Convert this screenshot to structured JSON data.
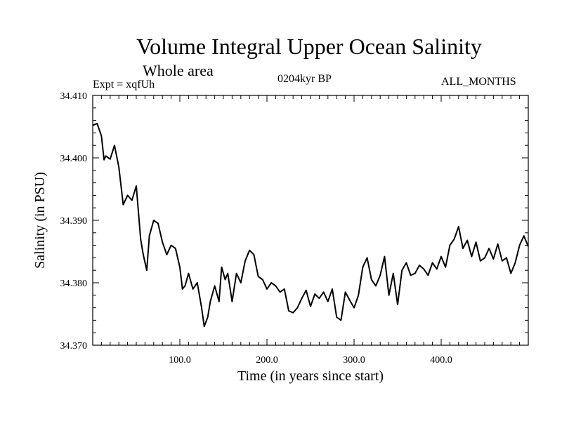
{
  "header": {
    "title": "Volume Integral Upper Ocean Salinity",
    "subtitle": "Whole area",
    "experiment": "Expt = xqfUh",
    "period": "0204kyr BP",
    "months": "ALL_MONTHS"
  },
  "chart_data": {
    "type": "line",
    "title": "Volume Integral Upper Ocean Salinity",
    "xlabel": "Time (in years since start)",
    "ylabel": "Salinity (in PSU)",
    "xlim": [
      0,
      500
    ],
    "ylim": [
      34.37,
      34.41
    ],
    "xticks": [
      100,
      200,
      300,
      400
    ],
    "xtick_labels": [
      "100.0",
      "200.0",
      "300.0",
      "400.0"
    ],
    "yticks": [
      34.37,
      34.38,
      34.39,
      34.4,
      34.41
    ],
    "ytick_labels": [
      "34.370",
      "34.380",
      "34.390",
      "34.400",
      "34.410"
    ],
    "grid": false,
    "series": [
      {
        "name": "Salinity",
        "x": [
          0,
          5,
          10,
          13,
          15,
          20,
          25,
          30,
          35,
          40,
          45,
          50,
          55,
          58,
          62,
          65,
          68,
          70,
          75,
          80,
          85,
          90,
          95,
          100,
          103,
          106,
          110,
          115,
          120,
          125,
          128,
          132,
          135,
          140,
          145,
          148,
          152,
          155,
          160,
          165,
          170,
          175,
          180,
          185,
          190,
          195,
          200,
          205,
          210,
          215,
          220,
          225,
          230,
          235,
          240,
          245,
          250,
          255,
          260,
          265,
          270,
          275,
          280,
          285,
          290,
          295,
          300,
          305,
          310,
          315,
          320,
          325,
          330,
          335,
          340,
          345,
          350,
          355,
          360,
          365,
          370,
          375,
          380,
          385,
          390,
          395,
          400,
          405,
          410,
          415,
          420,
          425,
          430,
          435,
          440,
          445,
          450,
          455,
          460,
          465,
          470,
          475,
          480,
          485,
          490,
          495,
          500
        ],
        "y": [
          34.4052,
          34.4055,
          34.4035,
          34.3997,
          34.4003,
          34.3998,
          34.402,
          34.3985,
          34.3925,
          34.394,
          34.3932,
          34.3955,
          34.387,
          34.3845,
          34.382,
          34.3875,
          34.389,
          34.39,
          34.3895,
          34.3865,
          34.3845,
          34.386,
          34.3855,
          34.3825,
          34.379,
          34.3795,
          34.3815,
          34.379,
          34.38,
          34.376,
          34.373,
          34.3745,
          34.377,
          34.3795,
          34.377,
          34.3825,
          34.3805,
          34.3815,
          34.377,
          34.3815,
          34.38,
          34.3835,
          34.3852,
          34.3845,
          34.381,
          34.3805,
          34.379,
          34.38,
          34.3795,
          34.3785,
          34.379,
          34.3755,
          34.3752,
          34.376,
          34.3775,
          34.3788,
          34.3762,
          34.3782,
          34.3775,
          34.3785,
          34.377,
          34.379,
          34.3745,
          34.374,
          34.3785,
          34.3772,
          34.376,
          34.378,
          34.3825,
          34.384,
          34.3805,
          34.3795,
          34.3812,
          34.3842,
          34.378,
          34.3815,
          34.3765,
          34.382,
          34.3832,
          34.3812,
          34.3815,
          34.3828,
          34.3822,
          34.3812,
          34.3832,
          34.3822,
          34.3842,
          34.3825,
          34.386,
          34.387,
          34.389,
          34.3855,
          34.3868,
          34.3842,
          34.3865,
          34.3835,
          34.384,
          34.3855,
          34.3838,
          34.3862,
          34.3835,
          34.384,
          34.3815,
          34.3832,
          34.386,
          34.3875,
          34.3858
        ]
      }
    ]
  }
}
